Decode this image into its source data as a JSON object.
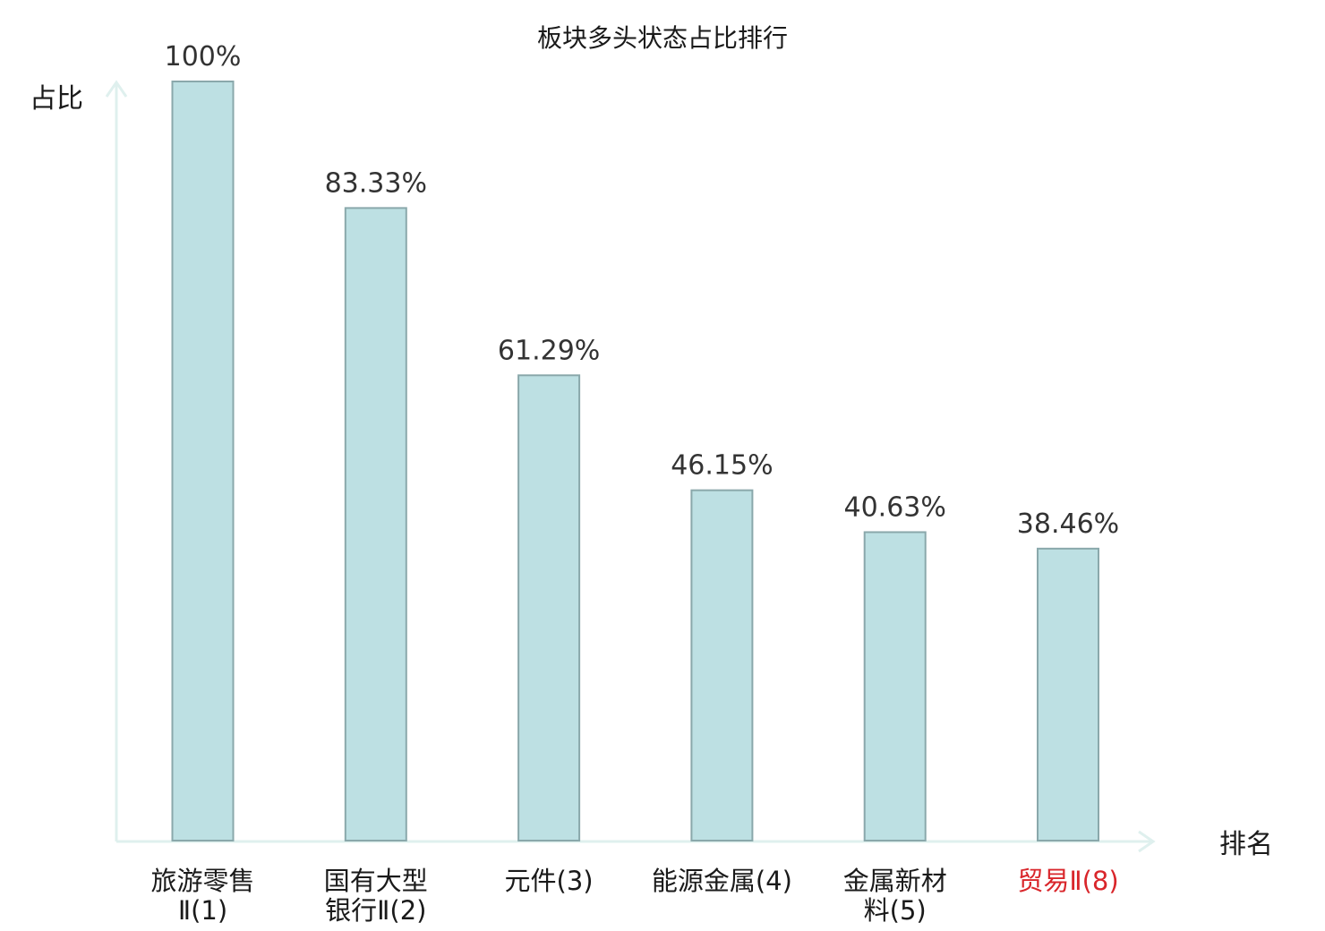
{
  "chart_data": {
    "type": "bar",
    "title": "板块多头状态占比排行",
    "ylabel": "占比",
    "xlabel": "排名",
    "ylim": [
      0,
      100
    ],
    "grid": false,
    "categories": [
      {
        "lines": [
          "旅游零售",
          "Ⅱ(1)"
        ],
        "highlight": false
      },
      {
        "lines": [
          "国有大型",
          "银行Ⅱ(2)"
        ],
        "highlight": false
      },
      {
        "lines": [
          "元件(3)"
        ],
        "highlight": false
      },
      {
        "lines": [
          "能源金属(4)"
        ],
        "highlight": false
      },
      {
        "lines": [
          "金属新材",
          "料(5)"
        ],
        "highlight": false
      },
      {
        "lines": [
          "贸易Ⅱ(8)"
        ],
        "highlight": true
      }
    ],
    "values": [
      100,
      83.33,
      61.29,
      46.15,
      40.63,
      38.46
    ],
    "value_labels": [
      "100%",
      "83.33%",
      "61.29%",
      "46.15%",
      "40.63%",
      "38.46%"
    ],
    "colors": {
      "bar_fill": "#bde0e3",
      "bar_stroke": "#8aa8ab",
      "axis": "#dff0ee",
      "label_normal": "#1a1a1a",
      "label_highlight": "#d9262b"
    }
  }
}
